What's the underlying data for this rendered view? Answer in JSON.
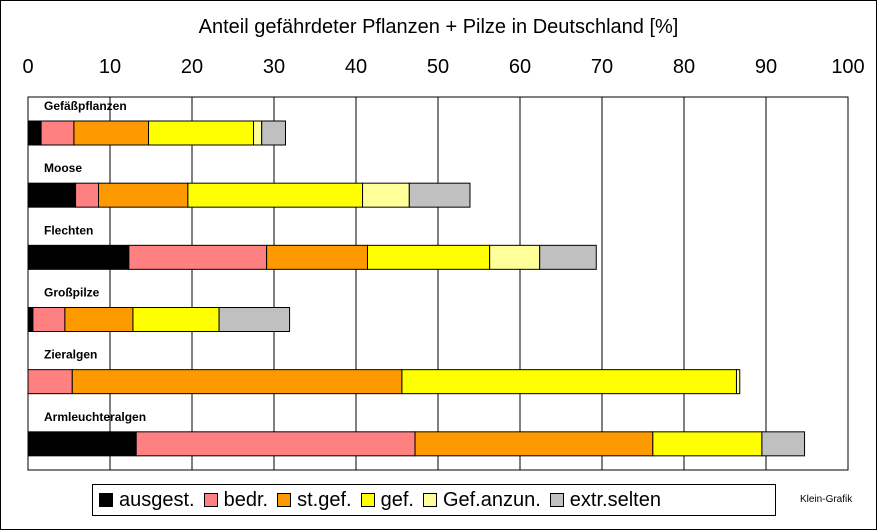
{
  "chart_data": {
    "type": "bar",
    "orientation": "horizontal",
    "stacked": true,
    "title": "Anteil gefährdeter Pflanzen + Pilze in Deutschland [%]",
    "xlim": [
      0,
      100
    ],
    "x_ticks": [
      0,
      10,
      20,
      30,
      40,
      50,
      60,
      70,
      80,
      90,
      100
    ],
    "grid": true,
    "legend_position": "bottom",
    "categories": [
      "Gefäßpflanzen",
      "Moose",
      "Flechten",
      "Großpilze",
      "Zieralgen",
      "Armleuchteralgen"
    ],
    "series": [
      {
        "name": "ausgest.",
        "color": "#000000",
        "values": [
          1.6,
          5.8,
          12.3,
          0.6,
          0,
          13.2
        ]
      },
      {
        "name": "bedr.",
        "color": "#ff8080",
        "values": [
          4.0,
          2.8,
          16.8,
          3.9,
          5.4,
          34.0
        ]
      },
      {
        "name": "st.gef.",
        "color": "#ff9900",
        "values": [
          9.1,
          10.9,
          12.3,
          8.3,
          40.2,
          29.0
        ]
      },
      {
        "name": "gef.",
        "color": "#ffff00",
        "values": [
          12.8,
          21.3,
          14.9,
          10.5,
          40.8,
          13.3
        ]
      },
      {
        "name": "Gef.anzun.",
        "color": "#ffff99",
        "values": [
          1.0,
          5.7,
          6.1,
          0,
          0.4,
          0
        ]
      },
      {
        "name": "extr.selten",
        "color": "#c0c0c0",
        "values": [
          2.9,
          7.4,
          6.9,
          8.6,
          0,
          5.2
        ]
      }
    ]
  },
  "credit": "Klein-Grafik"
}
